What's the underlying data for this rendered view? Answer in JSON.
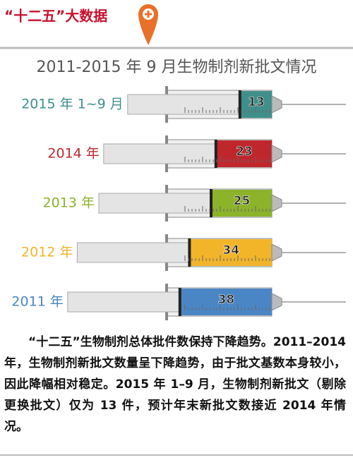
{
  "header": {
    "title": "“十二五”大数据"
  },
  "chart_data": {
    "type": "bar",
    "title": "2011-2015 年 9 月生物制剂新批文情况",
    "categories": [
      "2015 年 1~9 月",
      "2014 年",
      "2013 年",
      "2012 年",
      "2011 年"
    ],
    "values": [
      13,
      23,
      25,
      34,
      38
    ],
    "colors": [
      "#3f8f8b",
      "#c0272d",
      "#8cb32a",
      "#f2b52a",
      "#4a86c5"
    ]
  },
  "body_text": "“十二五”生物制剂总体批件数保持下降趋势。2011–2014 年，生物制剂新批文数量呈下降趋势，由于批文基数本身较小，因此降幅相对稳定。2015 年 1–9 月，生物制剂新批文（剔除更换批文）仅为 13 件，预计年末新批文数接近 2014 年情况。"
}
